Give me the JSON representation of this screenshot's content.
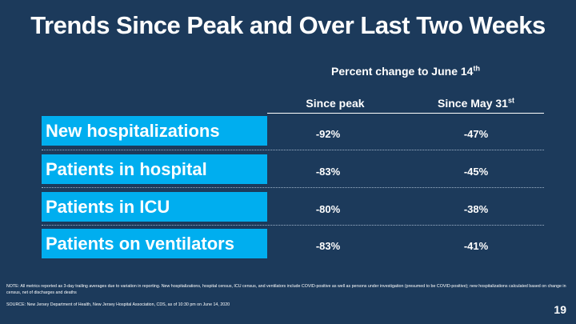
{
  "title": "Trends Since Peak and Over Last Two Weeks",
  "subheader": {
    "text": "Percent change to June 14",
    "sup": "th"
  },
  "columns": [
    {
      "label": "Since peak",
      "sup": ""
    },
    {
      "label": "Since May 31",
      "sup": "st"
    }
  ],
  "rows": [
    {
      "label": "New hospitalizations",
      "since_peak": "-92%",
      "since_may31": "-47%"
    },
    {
      "label": "Patients in hospital",
      "since_peak": "-83%",
      "since_may31": "-45%"
    },
    {
      "label": "Patients in ICU",
      "since_peak": "-80%",
      "since_may31": "-38%"
    },
    {
      "label": "Patients on ventilators",
      "since_peak": "-83%",
      "since_may31": "-41%"
    }
  ],
  "note": "NOTE: All metrics reported as 3-day trailing averages due to variation in reporting. New hospitalizations, hospital census, ICU census, and ventilators include COVID-positive as well as persons under investigation (presumed to be COVID-positive); new hospitalizations calculated based on change in census, net of discharges and deaths",
  "source": "SOURCE: New Jersey Department of Health, New Jersey Hospital Association, CDS, as of 10:30 pm on June 14, 2020",
  "page_number": "19",
  "colors": {
    "background": "#1c3a5b",
    "label_fill": "#00aeef",
    "text": "#ffffff"
  }
}
